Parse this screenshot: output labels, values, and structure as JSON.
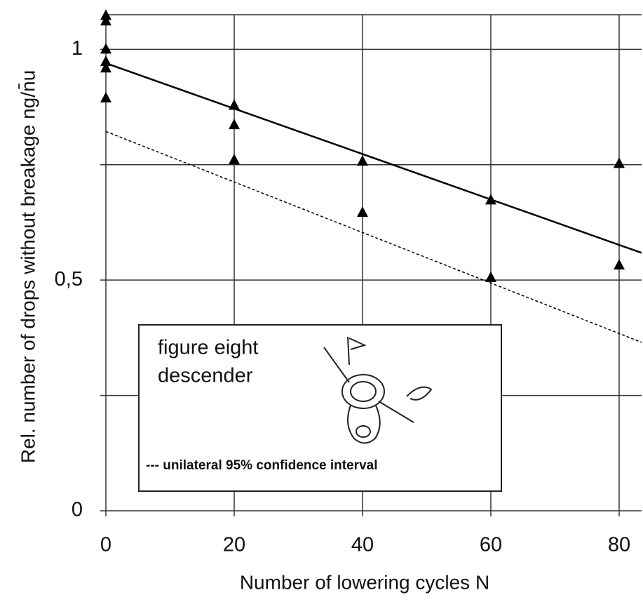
{
  "chart_data": {
    "type": "scatter",
    "x_label": "Number of lowering cycles N",
    "y_label": "Rel. number of drops without breakage ng/n̄u",
    "xlim": [
      0,
      83.5
    ],
    "ylim": [
      0,
      1.075
    ],
    "xticks": [
      0,
      20,
      40,
      60,
      80
    ],
    "yticks": [
      0,
      {
        "value": 0.5,
        "label": "0,5"
      },
      1
    ],
    "minor_yticks": [
      0.25,
      0.75
    ],
    "grid": true,
    "points": {
      "color": "#000000",
      "x": [
        0,
        0,
        0,
        0,
        0,
        0,
        20,
        20,
        20,
        40,
        40,
        60,
        60,
        80,
        80
      ],
      "values": [
        1.073,
        1.061,
        1.0,
        0.973,
        0.959,
        0.894,
        0.878,
        0.836,
        0.76,
        0.757,
        0.646,
        0.673,
        0.505,
        0.752,
        0.532
      ]
    },
    "fit_line": {
      "x": [
        0,
        83.5
      ],
      "values": [
        0.97,
        0.559
      ],
      "color": "#000000"
    },
    "confidence_line": {
      "x": [
        0,
        83.5
      ],
      "values": [
        0.822,
        0.365
      ],
      "color": "#000000"
    },
    "legend": {
      "title": [
        "figure eight",
        "descender"
      ],
      "note": "--- unilateral 95% confidence interval"
    }
  }
}
